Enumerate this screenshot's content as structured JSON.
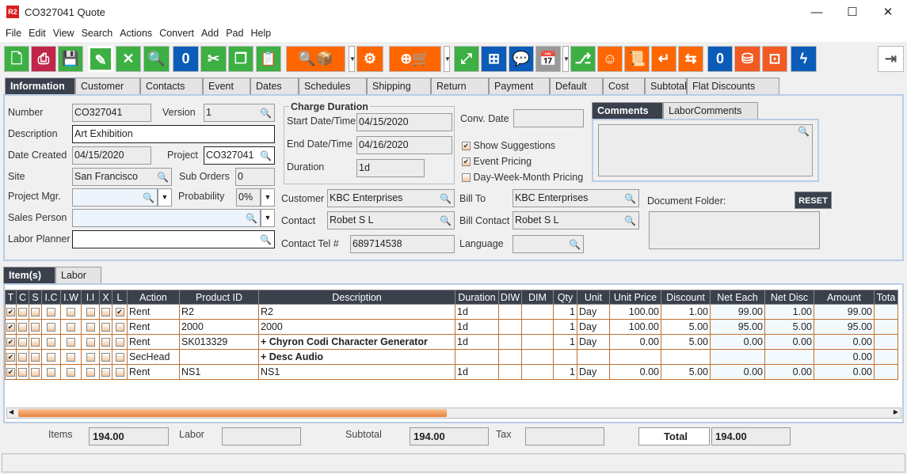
{
  "window": {
    "title": "CO327041 Quote",
    "logo": "R2",
    "min": "—",
    "max": "☐",
    "close": "✕"
  },
  "menu": [
    "File",
    "Edit",
    "View",
    "Search",
    "Actions",
    "Convert",
    "Add",
    "Pad",
    "Help"
  ],
  "toolbar": [
    {
      "icon": "new-document-icon",
      "color": "#3cb043",
      "glyph": "🗋"
    },
    {
      "icon": "print-icon",
      "color": "#c0264a",
      "glyph": "⎙"
    },
    {
      "icon": "save-icon",
      "color": "#3cb043",
      "glyph": "💾"
    },
    {
      "icon": "edit-icon",
      "color": "#3cb043",
      "glyph": "✎"
    },
    {
      "icon": "delete-icon",
      "color": "#3cb043",
      "glyph": "✕"
    },
    {
      "icon": "search-icon",
      "color": "#3cb043",
      "glyph": "🔍"
    },
    {
      "icon": "copy-zero-icon",
      "color": "#0b5cb8",
      "glyph": "0"
    },
    {
      "icon": "cut-icon",
      "color": "#3cb043",
      "glyph": "✂"
    },
    {
      "icon": "copy-icon",
      "color": "#3cb043",
      "glyph": "❐"
    },
    {
      "icon": "paste-icon",
      "color": "#3cb043",
      "glyph": "📋"
    },
    {
      "icon": "search-product-icon",
      "color": "#ff6600",
      "glyph": "🔍📦"
    },
    {
      "icon": "gears-icon",
      "color": "#ff6600",
      "glyph": "⚙"
    },
    {
      "icon": "add-po-cart-icon",
      "color": "#ff6600",
      "glyph": "⊕🛒"
    },
    {
      "icon": "expand-icon",
      "color": "#3cb043",
      "glyph": "⤢"
    },
    {
      "icon": "flowchart-icon",
      "color": "#0b5cb8",
      "glyph": "⊞"
    },
    {
      "icon": "comment-icon",
      "color": "#0b5cb8",
      "glyph": "💬"
    },
    {
      "icon": "calendar-icon",
      "color": "#999999",
      "glyph": "📅"
    },
    {
      "icon": "hierarchy-icon",
      "color": "#3cb043",
      "glyph": "⎇"
    },
    {
      "icon": "smiley-icon",
      "color": "#ff6600",
      "glyph": "☺"
    },
    {
      "icon": "scroll-icon",
      "color": "#ff6600",
      "glyph": "📜"
    },
    {
      "icon": "return-icon",
      "color": "#ff6600",
      "glyph": "↵"
    },
    {
      "icon": "box-return-icon",
      "color": "#ff6600",
      "glyph": "⇆"
    },
    {
      "icon": "message-zero-icon",
      "color": "#0b5cb8",
      "glyph": "0"
    },
    {
      "icon": "coins-add-icon",
      "color": "#f25a22",
      "glyph": "⛁"
    },
    {
      "icon": "safe-icon",
      "color": "#f25a22",
      "glyph": "⊡"
    },
    {
      "icon": "lightning-icon",
      "color": "#0b5cb8",
      "glyph": "ϟ"
    }
  ],
  "exit_icon": "⇥",
  "tabs": [
    "Information",
    "Customer",
    "Contacts",
    "Event",
    "Dates",
    "Schedules",
    "Shipping",
    "Return",
    "Payment",
    "Default",
    "Cost",
    "Subtotal",
    "Flat Discounts"
  ],
  "form": {
    "number_label": "Number",
    "number": "CO327041",
    "version_label": "Version",
    "version": "1",
    "description_label": "Description",
    "description": "Art Exhibition",
    "date_created_label": "Date Created",
    "date_created": "04/15/2020",
    "project_label": "Project",
    "project": "CO327041",
    "site_label": "Site",
    "site": "San Francisco",
    "sub_orders_label": "Sub Orders",
    "sub_orders": "0",
    "project_mgr_label": "Project Mgr.",
    "project_mgr": "",
    "probability_label": "Probability",
    "probability": "0%",
    "sales_person_label": "Sales Person",
    "sales_person": "",
    "labor_planner_label": "Labor Planner",
    "labor_planner": "",
    "charge_duration_title": "Charge Duration",
    "start_label": "Start Date/Time",
    "start": "04/15/2020",
    "end_label": "End Date/Time",
    "end": "04/16/2020",
    "duration_label": "Duration",
    "duration": "1d",
    "customer_label": "Customer",
    "customer": "KBC Enterprises",
    "contact_label": "Contact",
    "contact": "Robet S L",
    "contact_tel_label": "Contact Tel #",
    "contact_tel": "689714538",
    "conv_date_label": "Conv. Date",
    "conv_date": "",
    "show_suggestions": "Show Suggestions",
    "show_suggestions_checked": true,
    "event_pricing": "Event Pricing",
    "event_pricing_checked": true,
    "dwm_pricing": "Day-Week-Month Pricing",
    "dwm_pricing_checked": false,
    "bill_to_label": "Bill To",
    "bill_to": "KBC Enterprises",
    "bill_contact_label": "Bill Contact",
    "bill_contact": "Robet S L",
    "language_label": "Language",
    "language": "",
    "comments_tabs": [
      "Comments",
      "LaborComments"
    ],
    "document_folder_label": "Document Folder:",
    "reset": "RESET"
  },
  "item_tabs": [
    "Item(s)",
    "Labor"
  ],
  "table": {
    "columns": [
      "T",
      "C",
      "S",
      "I.C",
      "I.W",
      "I.I",
      "X",
      "L",
      "Action",
      "Product ID",
      "Description",
      "Duration",
      "DIW",
      "DIM",
      "Qty",
      "Unit",
      "Unit Price",
      "Discount",
      "Net Each",
      "Net Disc",
      "Amount",
      "Tota"
    ],
    "rows": [
      {
        "checks": [
          true,
          false,
          false,
          false,
          false,
          false,
          false,
          true
        ],
        "action": "Rent",
        "product_id": "R2",
        "description": "R2",
        "bold": false,
        "duration": "1d",
        "diw": "",
        "dim": "",
        "qty": "1",
        "unit": "Day",
        "unit_price": "100.00",
        "discount": "1.00",
        "net_each": "99.00",
        "net_disc": "1.00",
        "amount": "99.00",
        "total": ""
      },
      {
        "checks": [
          true,
          false,
          false,
          false,
          false,
          false,
          false,
          false
        ],
        "action": "Rent",
        "product_id": "2000",
        "description": "2000",
        "bold": false,
        "duration": "1d",
        "diw": "",
        "dim": "",
        "qty": "1",
        "unit": "Day",
        "unit_price": "100.00",
        "discount": "5.00",
        "net_each": "95.00",
        "net_disc": "5.00",
        "amount": "95.00",
        "total": ""
      },
      {
        "checks": [
          true,
          false,
          false,
          false,
          false,
          false,
          false,
          false
        ],
        "action": "Rent",
        "product_id": "SK013329",
        "description": "+  Chyron Codi Character Generator",
        "bold": true,
        "duration": "1d",
        "diw": "",
        "dim": "",
        "qty": "1",
        "unit": "Day",
        "unit_price": "0.00",
        "discount": "5.00",
        "net_each": "0.00",
        "net_disc": "0.00",
        "amount": "0.00",
        "total": ""
      },
      {
        "checks": [
          true,
          false,
          false,
          false,
          false,
          false,
          false,
          false
        ],
        "action": "SecHead",
        "product_id": "",
        "description": "+  Desc Audio",
        "bold": true,
        "duration": "",
        "diw": "",
        "dim": "",
        "qty": "",
        "unit": "",
        "unit_price": "",
        "discount": "",
        "net_each": "",
        "net_disc": "",
        "amount": "0.00",
        "total": ""
      },
      {
        "checks": [
          true,
          false,
          false,
          false,
          false,
          false,
          false,
          false
        ],
        "action": "Rent",
        "product_id": "NS1",
        "description": "NS1",
        "bold": false,
        "duration": "1d",
        "diw": "",
        "dim": "",
        "qty": "1",
        "unit": "Day",
        "unit_price": "0.00",
        "discount": "5.00",
        "net_each": "0.00",
        "net_disc": "0.00",
        "amount": "0.00",
        "total": ""
      }
    ]
  },
  "summary": {
    "items_label": "Items",
    "items": "194.00",
    "labor_label": "Labor",
    "labor": "",
    "subtotal_label": "Subtotal",
    "subtotal": "194.00",
    "tax_label": "Tax",
    "tax": "",
    "total_label": "Total",
    "total": "194.00"
  }
}
